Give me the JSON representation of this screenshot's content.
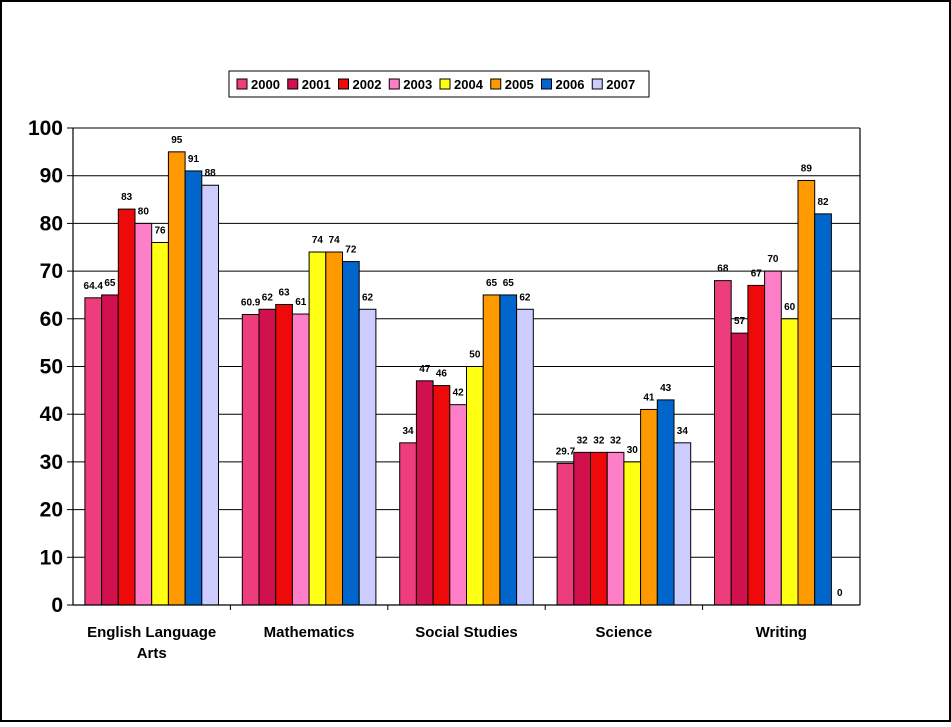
{
  "chart_data": {
    "type": "bar",
    "categories": [
      "English Language Arts",
      "Mathematics",
      "Social Studies",
      "Science",
      "Writing"
    ],
    "category_lines": [
      [
        "English Language",
        "Arts"
      ],
      [
        "Mathematics"
      ],
      [
        "Social Studies"
      ],
      [
        "Science"
      ],
      [
        "Writing"
      ]
    ],
    "series": [
      {
        "name": "2000",
        "color": "#ee3d7c",
        "values": [
          64.4,
          60.9,
          34,
          29.7,
          68
        ]
      },
      {
        "name": "2001",
        "color": "#d1114e",
        "values": [
          65,
          62,
          47,
          32,
          57
        ]
      },
      {
        "name": "2002",
        "color": "#ee0a0a",
        "values": [
          83,
          63,
          46,
          32,
          67
        ]
      },
      {
        "name": "2003",
        "color": "#ff7ec8",
        "values": [
          80,
          61,
          42,
          32,
          70
        ]
      },
      {
        "name": "2004",
        "color": "#ffff14",
        "values": [
          76,
          74,
          50,
          30,
          60
        ]
      },
      {
        "name": "2005",
        "color": "#ff9900",
        "values": [
          95,
          74,
          65,
          41,
          89
        ]
      },
      {
        "name": "2006",
        "color": "#0066cc",
        "values": [
          91,
          72,
          65,
          43,
          82
        ]
      },
      {
        "name": "2007",
        "color": "#ccccff",
        "values": [
          88,
          62,
          62,
          34,
          0
        ]
      }
    ],
    "title": "",
    "xlabel": "",
    "ylabel": "",
    "ylim": [
      0,
      100
    ],
    "yticks": [
      0,
      10,
      20,
      30,
      40,
      50,
      60,
      70,
      80,
      90,
      100
    ],
    "grid": true,
    "legend_position": "top"
  }
}
